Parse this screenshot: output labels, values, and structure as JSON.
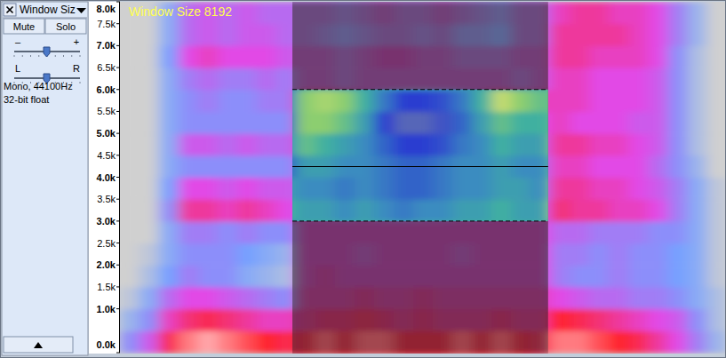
{
  "track_panel": {
    "name": "Window Siz",
    "buttons": [
      "Mute",
      "Solo"
    ],
    "gain_labels": [
      "–",
      "+"
    ],
    "pan_labels": [
      "L",
      "R"
    ],
    "info": [
      "Mono, 44100Hz",
      "32-bit float"
    ]
  },
  "chart_data": {
    "type": "heatmap",
    "title": "Window Size 8192",
    "xlim": [
      0,
      31
    ],
    "ylim": [
      0,
      8000
    ],
    "tick_labels": "y",
    "yticks": [
      {
        "value": 0,
        "label": "0.0k"
      },
      {
        "value": 1000,
        "label": "1.0k"
      },
      {
        "value": 1500,
        "label": "1.5k"
      },
      {
        "value": 2000,
        "label": "2.0k"
      },
      {
        "value": 2500,
        "label": "2.5k"
      },
      {
        "value": 3000,
        "label": "3.0k"
      },
      {
        "value": 3500,
        "label": "3.5k"
      },
      {
        "value": 4000,
        "label": "4.0k"
      },
      {
        "value": 4500,
        "label": "4.5k"
      },
      {
        "value": 5000,
        "label": "5.0k"
      },
      {
        "value": 5500,
        "label": "5.5k"
      },
      {
        "value": 6000,
        "label": "6.0k"
      },
      {
        "value": 6500,
        "label": "6.5k"
      },
      {
        "value": 7000,
        "label": "7.0k"
      },
      {
        "value": 7500,
        "label": "7.5k"
      },
      {
        "value": 8000,
        "label": "8.0k"
      }
    ],
    "bins": [
      0,
      500,
      1000,
      1500,
      2000,
      2500,
      3000,
      3500,
      4000,
      4500,
      5000,
      5500,
      6000,
      6500,
      7000,
      7500,
      8000
    ],
    "cells": [
      [
        0.3,
        0.45,
        0.7,
        0.85,
        0.9,
        0.85,
        0.8,
        0.75,
        0.7,
        0.75,
        0.8,
        0.75,
        0.8,
        0.8,
        0.75,
        0.75,
        0.75,
        0.8,
        0.75,
        0.8,
        0.75,
        0.7,
        0.85,
        0.85,
        0.8,
        0.75,
        0.7,
        0.6,
        0.5,
        0.35,
        0.15
      ],
      [
        0.15,
        0.3,
        0.55,
        0.65,
        0.7,
        0.65,
        0.6,
        0.55,
        0.55,
        0.6,
        0.65,
        0.65,
        0.7,
        0.65,
        0.6,
        0.65,
        0.6,
        0.6,
        0.6,
        0.65,
        0.6,
        0.6,
        0.75,
        0.7,
        0.65,
        0.6,
        0.55,
        0.5,
        0.45,
        0.3,
        0.1
      ],
      [
        0.05,
        0.2,
        0.4,
        0.5,
        0.5,
        0.45,
        0.4,
        0.35,
        0.3,
        0.55,
        0.55,
        0.55,
        0.6,
        0.55,
        0.55,
        0.6,
        0.55,
        0.55,
        0.55,
        0.55,
        0.55,
        0.55,
        0.5,
        0.45,
        0.4,
        0.4,
        0.35,
        0.35,
        0.3,
        0.2,
        0.1
      ],
      [
        0,
        0.1,
        0.25,
        0.35,
        0.3,
        0.3,
        0.2,
        0.15,
        0.1,
        0.5,
        0.55,
        0.5,
        0.5,
        0.5,
        0.5,
        0.5,
        0.5,
        0.5,
        0.5,
        0.5,
        0.5,
        0.5,
        0.35,
        0.3,
        0.3,
        0.35,
        0.3,
        0.3,
        0.25,
        0.2,
        0.05
      ],
      [
        0,
        0.05,
        0.2,
        0.3,
        0.3,
        0.3,
        0.25,
        0.2,
        0.15,
        0.5,
        0.5,
        0.5,
        0.45,
        0.5,
        0.5,
        0.5,
        0.5,
        0.45,
        0.5,
        0.5,
        0.5,
        0.5,
        0.35,
        0.35,
        0.3,
        0.35,
        0.3,
        0.3,
        0.25,
        0.2,
        0.05
      ],
      [
        0,
        0,
        0.2,
        0.35,
        0.35,
        0.3,
        0.35,
        0.3,
        0.3,
        0.5,
        0.5,
        0.5,
        0.5,
        0.5,
        0.5,
        0.5,
        0.5,
        0.5,
        0.5,
        0.5,
        0.5,
        0.5,
        0.4,
        0.4,
        0.35,
        0.35,
        0.35,
        0.3,
        0.3,
        0.2,
        0.05
      ],
      [
        0,
        0,
        0.3,
        0.6,
        0.6,
        0.55,
        0.6,
        0.55,
        0.5,
        0.45,
        0.45,
        0.4,
        0.45,
        0.4,
        0.35,
        0.4,
        0.4,
        0.45,
        0.45,
        0.5,
        0.45,
        0.45,
        0.65,
        0.6,
        0.6,
        0.55,
        0.55,
        0.5,
        0.35,
        0.2,
        0.05
      ],
      [
        0,
        0,
        0.25,
        0.5,
        0.5,
        0.45,
        0.5,
        0.45,
        0.45,
        0.4,
        0.4,
        0.35,
        0.4,
        0.35,
        0.3,
        0.3,
        0.35,
        0.4,
        0.4,
        0.45,
        0.45,
        0.4,
        0.6,
        0.6,
        0.55,
        0.55,
        0.5,
        0.45,
        0.35,
        0.2,
        0.05
      ],
      [
        0,
        0,
        0.2,
        0.3,
        0.3,
        0.3,
        0.3,
        0.3,
        0.3,
        0.45,
        0.45,
        0.4,
        0.4,
        0.35,
        0.3,
        0.3,
        0.35,
        0.4,
        0.4,
        0.45,
        0.4,
        0.4,
        0.55,
        0.55,
        0.5,
        0.5,
        0.5,
        0.4,
        0.3,
        0.15,
        0
      ],
      [
        0,
        0,
        0.2,
        0.45,
        0.45,
        0.4,
        0.45,
        0.4,
        0.4,
        0.55,
        0.5,
        0.45,
        0.4,
        0.3,
        0.2,
        0.2,
        0.25,
        0.35,
        0.4,
        0.5,
        0.45,
        0.45,
        0.6,
        0.6,
        0.55,
        0.55,
        0.5,
        0.45,
        0.3,
        0.1,
        0
      ],
      [
        0,
        0,
        0.2,
        0.3,
        0.3,
        0.3,
        0.3,
        0.3,
        0.3,
        0.6,
        0.6,
        0.55,
        0.45,
        0.2,
        0.1,
        0.1,
        0.15,
        0.3,
        0.45,
        0.55,
        0.5,
        0.5,
        0.55,
        0.5,
        0.5,
        0.5,
        0.45,
        0.45,
        0.3,
        0.1,
        0
      ],
      [
        0,
        0,
        0.2,
        0.3,
        0.35,
        0.3,
        0.3,
        0.35,
        0.35,
        0.6,
        0.65,
        0.6,
        0.5,
        0.35,
        0.2,
        0.2,
        0.25,
        0.35,
        0.5,
        0.7,
        0.6,
        0.55,
        0.55,
        0.55,
        0.5,
        0.5,
        0.5,
        0.45,
        0.3,
        0.1,
        0
      ],
      [
        0,
        0,
        0.2,
        0.35,
        0.4,
        0.35,
        0.35,
        0.4,
        0.35,
        0.45,
        0.45,
        0.4,
        0.45,
        0.45,
        0.45,
        0.45,
        0.45,
        0.45,
        0.45,
        0.45,
        0.4,
        0.45,
        0.55,
        0.55,
        0.5,
        0.5,
        0.5,
        0.45,
        0.3,
        0.1,
        0
      ],
      [
        0,
        0,
        0.25,
        0.5,
        0.55,
        0.5,
        0.5,
        0.5,
        0.45,
        0.45,
        0.45,
        0.4,
        0.45,
        0.5,
        0.5,
        0.45,
        0.45,
        0.4,
        0.4,
        0.4,
        0.45,
        0.45,
        0.6,
        0.6,
        0.55,
        0.55,
        0.55,
        0.5,
        0.3,
        0.1,
        0
      ],
      [
        0,
        0,
        0.2,
        0.4,
        0.45,
        0.4,
        0.45,
        0.45,
        0.4,
        0.4,
        0.35,
        0.3,
        0.35,
        0.4,
        0.4,
        0.35,
        0.4,
        0.3,
        0.3,
        0.25,
        0.4,
        0.4,
        0.6,
        0.6,
        0.6,
        0.6,
        0.55,
        0.5,
        0.35,
        0.15,
        0
      ],
      [
        0,
        0,
        0.2,
        0.4,
        0.45,
        0.4,
        0.45,
        0.4,
        0.4,
        0.4,
        0.4,
        0.35,
        0.4,
        0.45,
        0.4,
        0.4,
        0.45,
        0.4,
        0.35,
        0.3,
        0.4,
        0.4,
        0.55,
        0.6,
        0.6,
        0.55,
        0.55,
        0.5,
        0.35,
        0.15,
        0
      ]
    ],
    "selection": {
      "x": [
        8.82,
        21.9
      ],
      "y": [
        3000,
        6000
      ],
      "center": 4243
    }
  }
}
